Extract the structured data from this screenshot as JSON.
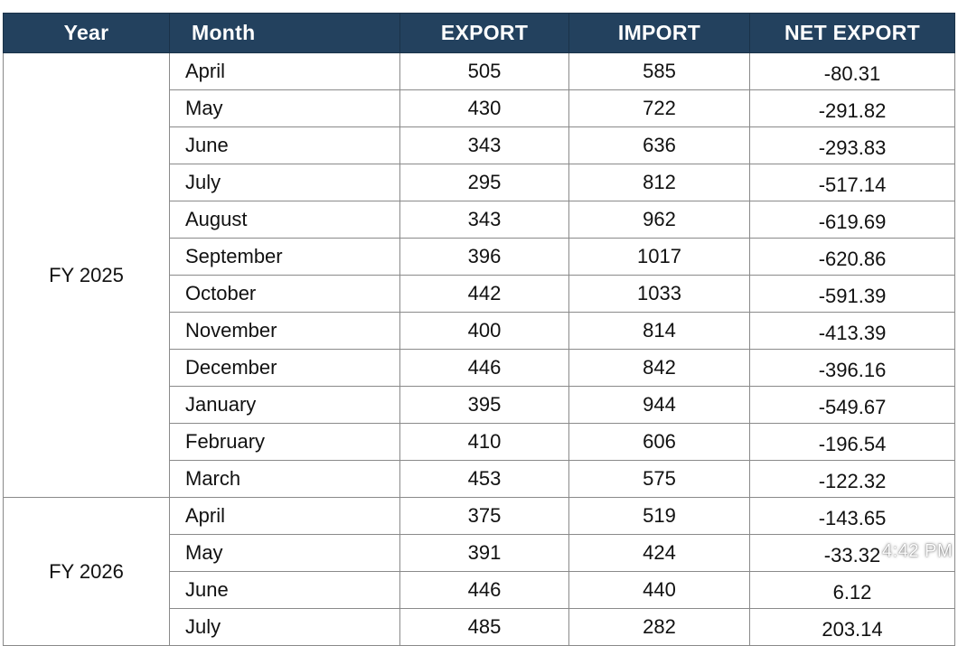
{
  "headers": {
    "year": "Year",
    "month": "Month",
    "export": "EXPORT",
    "import": "IMPORT",
    "net_export": "NET EXPORT"
  },
  "groups": [
    {
      "year": "FY 2025",
      "rows": [
        {
          "month": "April",
          "export": "505",
          "import": "585",
          "net": "-80.31"
        },
        {
          "month": "May",
          "export": "430",
          "import": "722",
          "net": "-291.82"
        },
        {
          "month": "June",
          "export": "343",
          "import": "636",
          "net": "-293.83"
        },
        {
          "month": "July",
          "export": "295",
          "import": "812",
          "net": "-517.14"
        },
        {
          "month": "August",
          "export": "343",
          "import": "962",
          "net": "-619.69"
        },
        {
          "month": "September",
          "export": "396",
          "import": "1017",
          "net": "-620.86"
        },
        {
          "month": "October",
          "export": "442",
          "import": "1033",
          "net": "-591.39"
        },
        {
          "month": "November",
          "export": "400",
          "import": "814",
          "net": "-413.39"
        },
        {
          "month": "December",
          "export": "446",
          "import": "842",
          "net": "-396.16"
        },
        {
          "month": "January",
          "export": "395",
          "import": "944",
          "net": "-549.67"
        },
        {
          "month": "February",
          "export": "410",
          "import": "606",
          "net": "-196.54"
        },
        {
          "month": "March",
          "export": "453",
          "import": "575",
          "net": "-122.32"
        }
      ]
    },
    {
      "year": "FY 2026",
      "rows": [
        {
          "month": "April",
          "export": "375",
          "import": "519",
          "net": "-143.65"
        },
        {
          "month": "May",
          "export": "391",
          "import": "424",
          "net": "-33.32"
        },
        {
          "month": "June",
          "export": "446",
          "import": "440",
          "net": "6.12"
        },
        {
          "month": "July",
          "export": "485",
          "import": "282",
          "net": "203.14"
        }
      ]
    }
  ],
  "status_time": "4:42 PM",
  "colors": {
    "header_bg": "#23415e",
    "header_text": "#ffffff",
    "border": "#8a8a8a"
  }
}
